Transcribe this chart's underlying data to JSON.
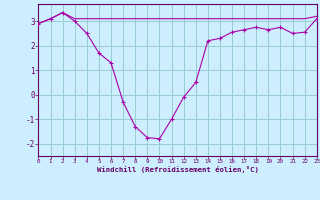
{
  "hours": [
    0,
    1,
    2,
    3,
    4,
    5,
    6,
    7,
    8,
    9,
    10,
    11,
    12,
    13,
    14,
    15,
    16,
    17,
    18,
    19,
    20,
    21,
    22,
    23
  ],
  "windchill": [
    2.9,
    3.1,
    3.35,
    3.0,
    2.5,
    1.7,
    1.3,
    -0.3,
    -1.3,
    -1.75,
    -1.8,
    -1.0,
    -0.1,
    0.5,
    2.2,
    2.3,
    2.55,
    2.65,
    2.75,
    2.65,
    2.75,
    2.5,
    2.55,
    3.1
  ],
  "temp": [
    2.9,
    3.1,
    3.35,
    3.1,
    3.1,
    3.1,
    3.1,
    3.1,
    3.1,
    3.1,
    3.1,
    3.1,
    3.1,
    3.1,
    3.1,
    3.1,
    3.1,
    3.1,
    3.1,
    3.1,
    3.1,
    3.1,
    3.1,
    3.2
  ],
  "line_color": "#aa00aa",
  "bg_color": "#cceeff",
  "grid_color": "#99cccc",
  "xlabel": "Windchill (Refroidissement éolien,°C)",
  "ylim": [
    -2.5,
    3.7
  ],
  "yticks": [
    -2,
    -1,
    0,
    1,
    2,
    3
  ],
  "xlim": [
    0,
    23
  ]
}
